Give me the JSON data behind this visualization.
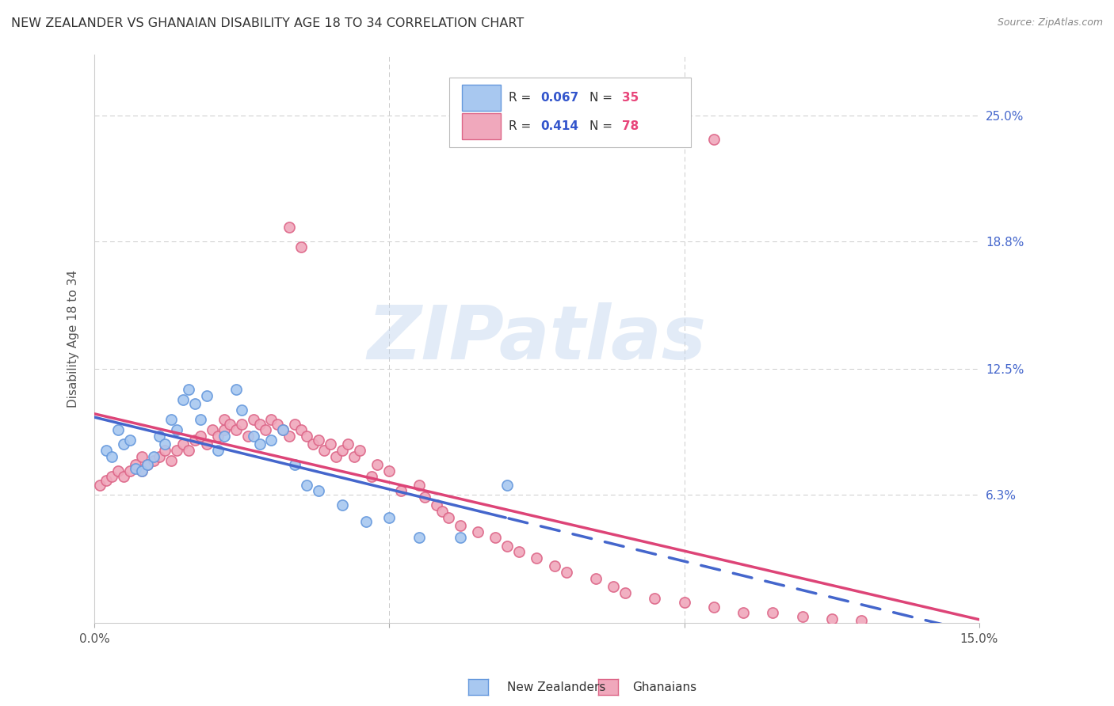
{
  "title": "NEW ZEALANDER VS GHANAIAN DISABILITY AGE 18 TO 34 CORRELATION CHART",
  "source": "Source: ZipAtlas.com",
  "ylabel_label": "Disability Age 18 to 34",
  "xmin": 0.0,
  "xmax": 0.15,
  "ymin": 0.0,
  "ymax": 0.28,
  "watermark_text": "ZIPatlas",
  "legend_r1": "0.067",
  "legend_n1": "35",
  "legend_r2": "0.414",
  "legend_n2": "78",
  "color_nz_fill": "#A8C8F0",
  "color_nz_edge": "#6699DD",
  "color_gh_fill": "#F0A8BC",
  "color_gh_edge": "#DD6688",
  "color_r_text": "#3355CC",
  "color_n_text": "#E8457A",
  "color_trend_nz": "#4466CC",
  "color_trend_gh": "#DD4477",
  "color_grid": "#CCCCCC",
  "ytick_vals": [
    0.063,
    0.125,
    0.188,
    0.25
  ],
  "ytick_labels": [
    "6.3%",
    "12.5%",
    "18.8%",
    "25.0%"
  ],
  "xtick_vals": [
    0.0,
    0.05,
    0.1,
    0.15
  ],
  "xtick_labels": [
    "0.0%",
    "",
    "",
    "15.0%"
  ],
  "nz_x": [
    0.002,
    0.003,
    0.004,
    0.005,
    0.006,
    0.007,
    0.008,
    0.009,
    0.01,
    0.011,
    0.012,
    0.013,
    0.014,
    0.015,
    0.016,
    0.017,
    0.018,
    0.019,
    0.021,
    0.022,
    0.024,
    0.025,
    0.027,
    0.028,
    0.03,
    0.032,
    0.034,
    0.036,
    0.038,
    0.042,
    0.046,
    0.05,
    0.055,
    0.062,
    0.07
  ],
  "nz_y": [
    0.085,
    0.082,
    0.095,
    0.088,
    0.09,
    0.076,
    0.075,
    0.078,
    0.082,
    0.092,
    0.088,
    0.1,
    0.095,
    0.11,
    0.115,
    0.108,
    0.1,
    0.112,
    0.085,
    0.092,
    0.115,
    0.105,
    0.092,
    0.088,
    0.09,
    0.095,
    0.078,
    0.068,
    0.065,
    0.058,
    0.05,
    0.052,
    0.042,
    0.042,
    0.068
  ],
  "gh_x": [
    0.001,
    0.002,
    0.003,
    0.004,
    0.005,
    0.006,
    0.007,
    0.008,
    0.008,
    0.009,
    0.01,
    0.011,
    0.012,
    0.013,
    0.014,
    0.015,
    0.016,
    0.017,
    0.018,
    0.019,
    0.02,
    0.021,
    0.022,
    0.022,
    0.023,
    0.024,
    0.025,
    0.026,
    0.027,
    0.028,
    0.029,
    0.03,
    0.031,
    0.032,
    0.033,
    0.034,
    0.035,
    0.036,
    0.037,
    0.038,
    0.039,
    0.04,
    0.041,
    0.042,
    0.043,
    0.044,
    0.045,
    0.047,
    0.048,
    0.05,
    0.052,
    0.055,
    0.056,
    0.058,
    0.059,
    0.06,
    0.062,
    0.065,
    0.068,
    0.07,
    0.072,
    0.075,
    0.078,
    0.08,
    0.085,
    0.088,
    0.09,
    0.095,
    0.1,
    0.105,
    0.11,
    0.115,
    0.12,
    0.125,
    0.13,
    0.033,
    0.035,
    0.105
  ],
  "gh_y": [
    0.068,
    0.07,
    0.072,
    0.075,
    0.072,
    0.075,
    0.078,
    0.075,
    0.082,
    0.078,
    0.08,
    0.082,
    0.085,
    0.08,
    0.085,
    0.088,
    0.085,
    0.09,
    0.092,
    0.088,
    0.095,
    0.092,
    0.095,
    0.1,
    0.098,
    0.095,
    0.098,
    0.092,
    0.1,
    0.098,
    0.095,
    0.1,
    0.098,
    0.095,
    0.092,
    0.098,
    0.095,
    0.092,
    0.088,
    0.09,
    0.085,
    0.088,
    0.082,
    0.085,
    0.088,
    0.082,
    0.085,
    0.072,
    0.078,
    0.075,
    0.065,
    0.068,
    0.062,
    0.058,
    0.055,
    0.052,
    0.048,
    0.045,
    0.042,
    0.038,
    0.035,
    0.032,
    0.028,
    0.025,
    0.022,
    0.018,
    0.015,
    0.012,
    0.01,
    0.008,
    0.005,
    0.005,
    0.003,
    0.002,
    0.001,
    0.195,
    0.185,
    0.238
  ]
}
